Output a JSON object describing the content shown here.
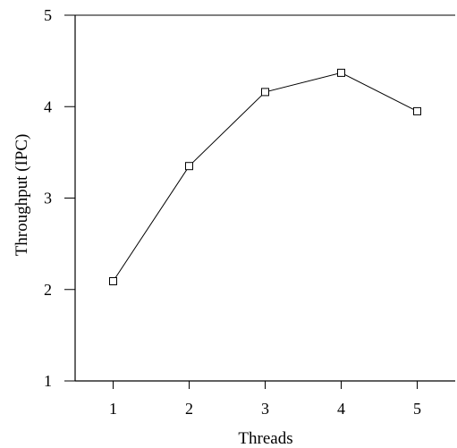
{
  "chart_data": {
    "type": "line",
    "xlabel": "Threads",
    "ylabel": "Throughput (IPC)",
    "x": [
      1,
      2,
      3,
      4,
      5
    ],
    "series": [
      {
        "values": [
          2.09,
          3.35,
          4.16,
          4.37,
          3.95
        ]
      }
    ],
    "xticks": [
      "1",
      "2",
      "3",
      "4",
      "5"
    ],
    "yticks": [
      "1",
      "2",
      "3",
      "4",
      "5"
    ],
    "xlim": [
      0.5,
      5.5
    ],
    "ylim": [
      1,
      5
    ],
    "grid": false,
    "marker": "open-square"
  }
}
